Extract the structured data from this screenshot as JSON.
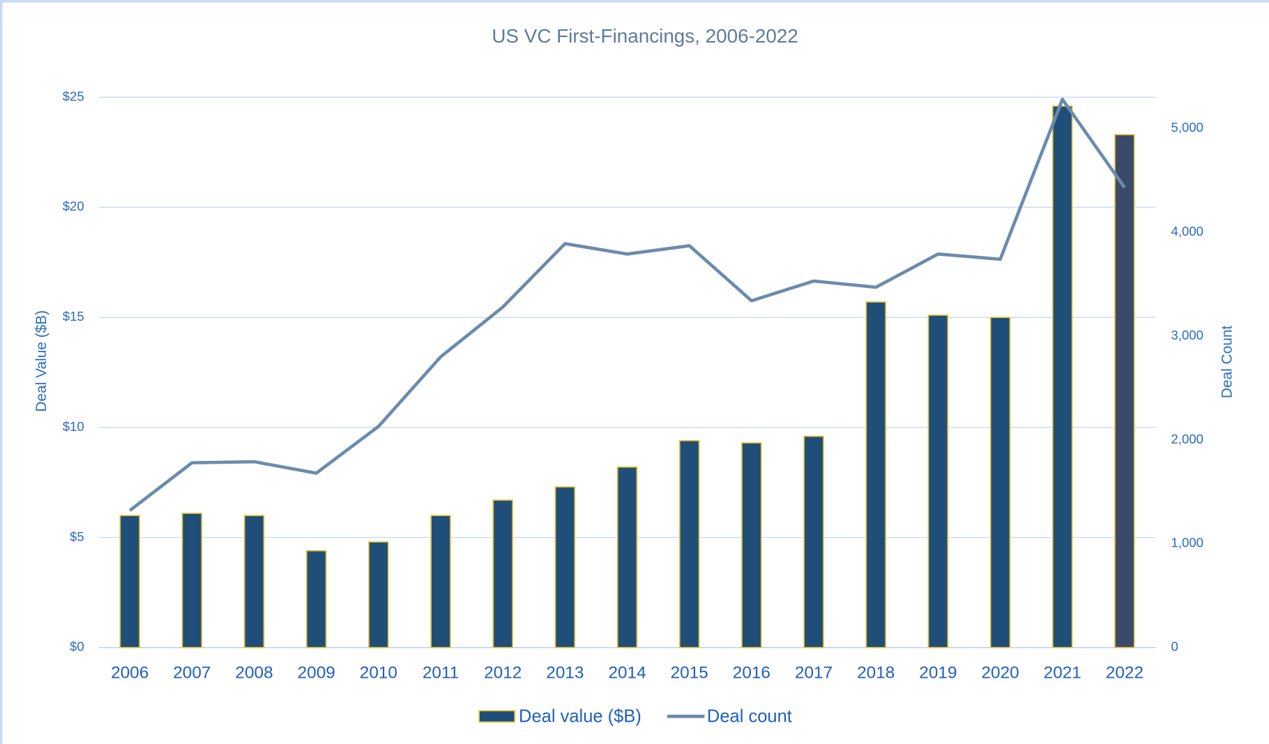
{
  "chart_data": {
    "type": "bar_line",
    "title": "US VC First-Financings, 2006-2022",
    "y_label": "Deal Value  ($B)",
    "y2_label": "Deal Count",
    "categories": [
      "2006",
      "2007",
      "2008",
      "2009",
      "2010",
      "2011",
      "2012",
      "2013",
      "2014",
      "2015",
      "2016",
      "2017",
      "2018",
      "2019",
      "2020",
      "2021",
      "2022"
    ],
    "series": [
      {
        "name": "Deal value ($B)",
        "type": "bar",
        "color": "#1f4e79",
        "edge_color": "#e8c53a",
        "colors": [
          "#1f4e79",
          "#1f4e79",
          "#1f4e79",
          "#1f4e79",
          "#1f4e79",
          "#1f4e79",
          "#1f4e79",
          "#1f4e79",
          "#1f4e79",
          "#1f4e79",
          "#1f4e79",
          "#1f4e79",
          "#1f4e79",
          "#1f4e79",
          "#1f4e79",
          "#1f4e79",
          "#3b4a6b"
        ],
        "values": [
          6.0,
          6.1,
          6.0,
          4.4,
          4.8,
          6.0,
          6.7,
          7.3,
          8.2,
          9.4,
          9.3,
          9.6,
          15.7,
          15.1,
          15.0,
          24.6,
          23.3
        ]
      },
      {
        "name": "Deal count",
        "type": "line",
        "axis": "y2",
        "color": "#6a8bad",
        "values": [
          1320,
          1780,
          1790,
          1680,
          2130,
          2800,
          3280,
          3890,
          3790,
          3870,
          3340,
          3530,
          3470,
          3790,
          3740,
          5280,
          4430
        ]
      }
    ],
    "ylim": [
      0,
      25
    ],
    "yticks": [
      {
        "value": 0,
        "label": "$0"
      },
      {
        "value": 5,
        "label": "$5"
      },
      {
        "value": 10,
        "label": "$10"
      },
      {
        "value": 15,
        "label": "$15"
      },
      {
        "value": 20,
        "label": "$20"
      },
      {
        "value": 25,
        "label": "$25"
      }
    ],
    "y2lim": [
      0,
      5300
    ],
    "y2ticks": [
      0,
      {
        "value": 1000,
        "label": "1,000"
      },
      {
        "value": 2000,
        "label": "2,000"
      },
      {
        "value": 3000,
        "label": "3,000"
      },
      {
        "value": 4000,
        "label": "4,000"
      },
      {
        "value": 5000,
        "label": "5,000"
      }
    ],
    "grid": true,
    "legend": "bottom"
  }
}
